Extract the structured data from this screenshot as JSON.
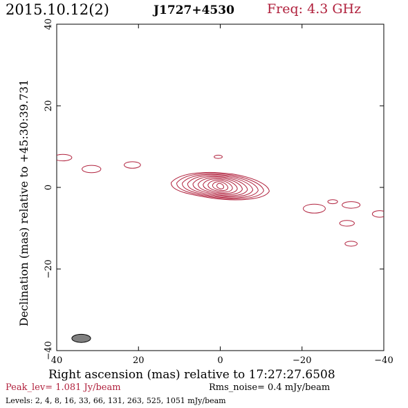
{
  "header": {
    "date": "2015.10.12(2)",
    "source": "J1727+4530",
    "frequency": "Freq: 4.3 GHz"
  },
  "footer": {
    "peak": "Peak_lev=  1.081 Jy/beam",
    "rms": "Rms_noise=  0.4 mJy/beam",
    "levels": "Levels:  2,  4,  8,  16,  33,  66,  131,  263,  525,  1051 mJy/beam"
  },
  "chart_data": {
    "type": "contour",
    "xlabel": "Right ascension (mas) relative to 17:27:27.6508",
    "ylabel": "Declination (mas) relative to +45:30:39.731",
    "xlim": [
      40,
      -40
    ],
    "ylim": [
      -40,
      40
    ],
    "x_ticks": [
      40,
      20,
      0,
      -20,
      -40
    ],
    "y_ticks": [
      -40,
      -20,
      0,
      20,
      40
    ],
    "contour_color": "#b0203c",
    "contour_levels_mJy": [
      2,
      4,
      8,
      16,
      33,
      66,
      131,
      263,
      525,
      1051
    ],
    "beam": {
      "x": 34,
      "y": -37,
      "major_mas": 4.6,
      "minor_mas": 2.0,
      "pa_deg": 90,
      "color": "#808080"
    },
    "core": {
      "x": 0,
      "y": 0.3,
      "extent_west_mas": 12,
      "extent_east_mas": 12,
      "extent_north_mas": 3.5,
      "extent_south_mas": 3.5
    },
    "components": [
      {
        "x": 38.5,
        "y": 7.3,
        "rx": 2.2,
        "ry": 0.8
      },
      {
        "x": 31.5,
        "y": 4.5,
        "rx": 2.3,
        "ry": 0.9
      },
      {
        "x": 21.5,
        "y": 5.5,
        "rx": 2.0,
        "ry": 0.8
      },
      {
        "x": 0.5,
        "y": 7.5,
        "rx": 1.0,
        "ry": 0.4
      },
      {
        "x": -23,
        "y": -5.2,
        "rx": 2.7,
        "ry": 1.1
      },
      {
        "x": -27.5,
        "y": -3.5,
        "rx": 1.2,
        "ry": 0.5
      },
      {
        "x": -32,
        "y": -4.3,
        "rx": 2.2,
        "ry": 0.8
      },
      {
        "x": -31,
        "y": -8.8,
        "rx": 1.8,
        "ry": 0.7
      },
      {
        "x": -32,
        "y": -13.8,
        "rx": 1.5,
        "ry": 0.6
      },
      {
        "x": -39,
        "y": -6.5,
        "rx": 1.8,
        "ry": 0.8
      }
    ]
  }
}
